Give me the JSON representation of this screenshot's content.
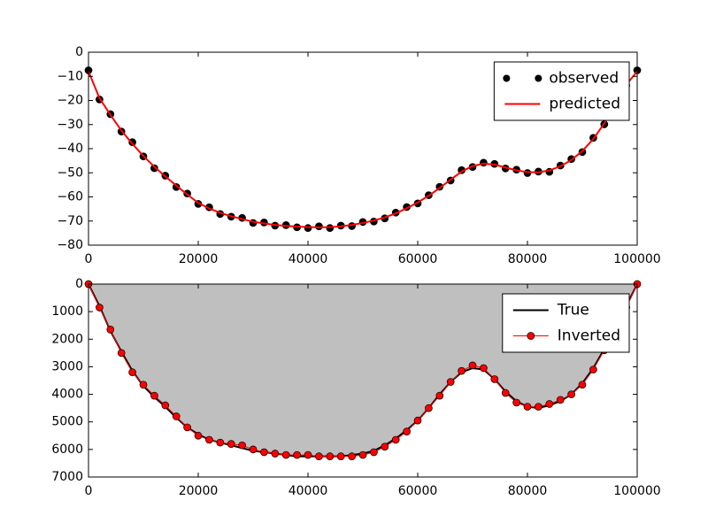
{
  "chart_data": [
    {
      "type": "line",
      "x": [
        0,
        2000,
        4000,
        6000,
        8000,
        10000,
        12000,
        14000,
        16000,
        18000,
        20000,
        22000,
        24000,
        26000,
        28000,
        30000,
        32000,
        34000,
        36000,
        38000,
        40000,
        42000,
        44000,
        46000,
        48000,
        50000,
        52000,
        54000,
        56000,
        58000,
        60000,
        62000,
        64000,
        66000,
        68000,
        70000,
        72000,
        74000,
        76000,
        78000,
        80000,
        82000,
        84000,
        86000,
        88000,
        90000,
        92000,
        94000,
        96000,
        98000,
        100000
      ],
      "xlim": [
        0,
        100000
      ],
      "xticks": [
        0,
        20000,
        40000,
        60000,
        80000,
        100000
      ],
      "ylim": [
        -80,
        0
      ],
      "yticks": [
        {
          "value": -80,
          "label": "−80"
        },
        {
          "value": -70,
          "label": "−70"
        },
        {
          "value": -60,
          "label": "−60"
        },
        {
          "value": -50,
          "label": "−50"
        },
        {
          "value": -40,
          "label": "−40"
        },
        {
          "value": -30,
          "label": "−30"
        },
        {
          "value": -20,
          "label": "−20"
        },
        {
          "value": -10,
          "label": "−10"
        },
        0
      ],
      "legend_loc": "upper right",
      "series": [
        {
          "name": "observed",
          "color": "#000000",
          "marker": true,
          "line": false,
          "values": [
            -7.5,
            -19.6,
            -25.7,
            -32.9,
            -37.3,
            -43.2,
            -48.1,
            -51.2,
            -55.9,
            -58.6,
            -62.9,
            -64.3,
            -67.1,
            -68.2,
            -68.7,
            -70.8,
            -70.6,
            -71.9,
            -71.7,
            -72.6,
            -72.9,
            -72.2,
            -72.9,
            -71.9,
            -72.1,
            -70.4,
            -70.2,
            -68.9,
            -66.5,
            -64.2,
            -62.7,
            -59.3,
            -55.8,
            -53.2,
            -48.9,
            -47.6,
            -45.8,
            -46.3,
            -48.2,
            -48.7,
            -50.1,
            -49.5,
            -49.6,
            -47,
            -44.3,
            -41.4,
            -35.5,
            -29.9,
            -21,
            -13.8,
            -7.5
          ]
        },
        {
          "name": "predicted",
          "color": "#ff0000",
          "marker": false,
          "line": true,
          "values": [
            -8,
            -19,
            -26,
            -32.5,
            -38,
            -43,
            -47.5,
            -51.5,
            -55.3,
            -59,
            -62.5,
            -64.8,
            -66.6,
            -68,
            -69.2,
            -70.3,
            -71,
            -71.6,
            -72,
            -72.3,
            -72.5,
            -72.6,
            -72.5,
            -72.2,
            -71.6,
            -70.8,
            -69.8,
            -68.5,
            -66.8,
            -64.7,
            -62.3,
            -59.5,
            -56.3,
            -52.8,
            -49.5,
            -47.2,
            -46.2,
            -46.6,
            -47.8,
            -49,
            -49.7,
            -49.8,
            -49,
            -47.3,
            -44.7,
            -41,
            -36,
            -29.5,
            -21.5,
            -13.5,
            -8
          ]
        }
      ]
    },
    {
      "type": "line",
      "x": [
        0,
        2000,
        4000,
        6000,
        8000,
        10000,
        12000,
        14000,
        16000,
        18000,
        20000,
        22000,
        24000,
        26000,
        28000,
        30000,
        32000,
        34000,
        36000,
        38000,
        40000,
        42000,
        44000,
        46000,
        48000,
        50000,
        52000,
        54000,
        56000,
        58000,
        60000,
        62000,
        64000,
        66000,
        68000,
        70000,
        72000,
        74000,
        76000,
        78000,
        80000,
        82000,
        84000,
        86000,
        88000,
        90000,
        92000,
        94000,
        96000,
        98000,
        100000
      ],
      "xlim": [
        0,
        100000
      ],
      "xticks": [
        0,
        20000,
        40000,
        60000,
        80000,
        100000
      ],
      "ylim": [
        7000,
        0
      ],
      "yticks": [
        0,
        1000,
        2000,
        3000,
        4000,
        5000,
        6000,
        7000
      ],
      "legend_loc": "upper right",
      "series": [
        {
          "name": "True",
          "color": "#000000",
          "marker": false,
          "line": true,
          "fill": "#bfbfbf",
          "values": [
            0,
            800,
            1700,
            2450,
            3150,
            3700,
            4100,
            4450,
            4850,
            5200,
            5450,
            5650,
            5750,
            5850,
            5950,
            6050,
            6100,
            6150,
            6200,
            6250,
            6250,
            6250,
            6250,
            6250,
            6200,
            6150,
            6050,
            5850,
            5600,
            5300,
            4950,
            4500,
            4000,
            3550,
            3200,
            3050,
            3100,
            3450,
            3900,
            4250,
            4450,
            4500,
            4400,
            4250,
            4000,
            3600,
            3050,
            2350,
            1600,
            800,
            0
          ]
        },
        {
          "name": "Inverted",
          "color": "#ff0000",
          "marker": true,
          "line": true,
          "values": [
            0,
            850,
            1650,
            2500,
            3200,
            3650,
            4050,
            4400,
            4800,
            5200,
            5500,
            5650,
            5750,
            5800,
            5850,
            6000,
            6100,
            6150,
            6200,
            6200,
            6200,
            6250,
            6250,
            6250,
            6250,
            6200,
            6100,
            5900,
            5650,
            5350,
            4950,
            4500,
            4050,
            3550,
            3150,
            2950,
            3050,
            3450,
            3950,
            4300,
            4450,
            4450,
            4350,
            4200,
            4000,
            3650,
            3100,
            2400,
            1650,
            850,
            0
          ]
        }
      ]
    }
  ]
}
